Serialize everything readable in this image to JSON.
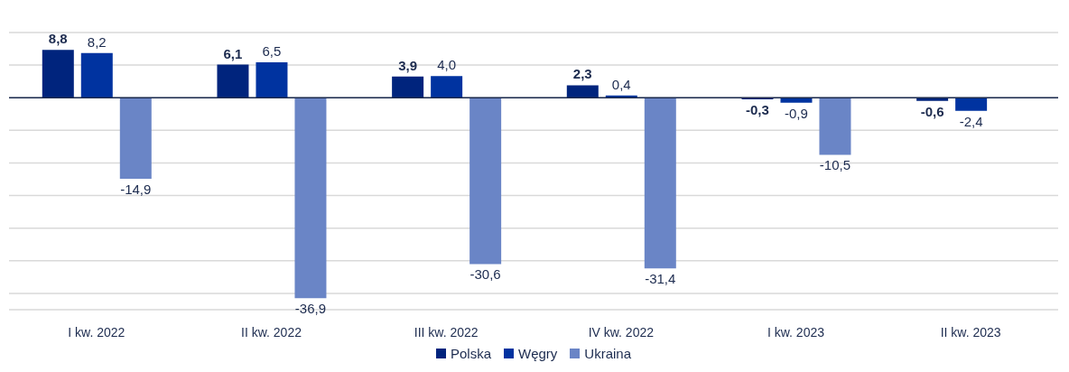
{
  "chart_data": {
    "type": "bar",
    "categories": [
      "I kw. 2022",
      "II kw. 2022",
      "III kw. 2022",
      "IV kw. 2022",
      "I kw. 2023",
      "II kw. 2023"
    ],
    "series": [
      {
        "name": "Polska",
        "color": "#00247d",
        "values": [
          8.8,
          6.1,
          3.9,
          2.3,
          -0.3,
          -0.6
        ],
        "value_labels": [
          "8,8",
          "6,1",
          "3,9",
          "2,3",
          "-0,3",
          "-0,6"
        ]
      },
      {
        "name": "Węgry",
        "color": "#0033a0",
        "values": [
          8.2,
          6.5,
          4.0,
          0.4,
          -0.9,
          -2.4
        ],
        "value_labels": [
          "8,2",
          "6,5",
          "4,0",
          "0,4",
          "-0,9",
          "-2,4"
        ]
      },
      {
        "name": "Ukraina",
        "color": "#6a85c6",
        "values": [
          -14.9,
          -36.9,
          -30.6,
          -31.4,
          -10.5,
          null
        ],
        "value_labels": [
          "-14,9",
          "-36,9",
          "-30,6",
          "-31,4",
          "-10,5",
          null
        ]
      }
    ],
    "tick_labels": "x",
    "grid": "y",
    "legend": "bottom"
  }
}
